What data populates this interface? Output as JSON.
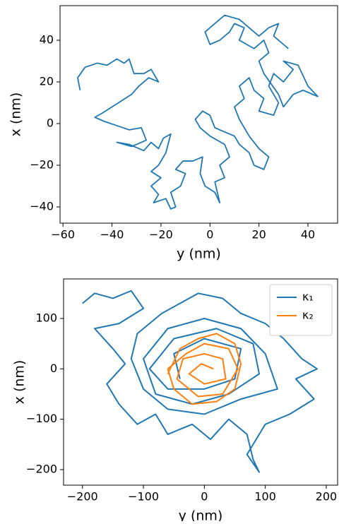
{
  "chart_data": [
    {
      "type": "line",
      "xlabel": "y (nm)",
      "ylabel": "x (nm)",
      "xlim": [
        -61.2,
        52.1
      ],
      "ylim": [
        -47.8,
        56.6
      ],
      "xticks": [
        {
          "value": -60,
          "label": "−60"
        },
        {
          "value": -40,
          "label": "−40"
        },
        {
          "value": -20,
          "label": "−20"
        },
        0,
        20,
        40
      ],
      "yticks": [
        {
          "value": -40,
          "label": "−40"
        },
        {
          "value": -20,
          "label": "−20"
        },
        0,
        20,
        40
      ],
      "series": [
        {
          "color": "#1f77b4",
          "x": [
            -53,
            -54,
            -51,
            -46,
            -42,
            -38,
            -35,
            -33,
            -31,
            -27,
            -24,
            -21,
            -25,
            -29,
            -32,
            -36,
            -40,
            -44,
            -47,
            -43,
            -38,
            -33,
            -28,
            -26,
            -32,
            -38,
            -33,
            -27,
            -24,
            -21,
            -19,
            -16,
            -18,
            -21,
            -24,
            -20,
            -24,
            -21,
            -23,
            -18,
            -16,
            -14,
            -16,
            -12,
            -10,
            -14,
            -11,
            -7,
            -3,
            -4,
            -2,
            2,
            4,
            2,
            6,
            4,
            8,
            6,
            0,
            -4,
            -6,
            -3,
            0,
            2,
            6,
            10,
            12,
            16,
            18,
            22,
            24,
            20,
            16,
            12,
            10,
            14,
            12,
            16,
            18,
            22,
            20,
            26,
            28,
            24,
            26,
            30,
            34,
            30,
            36,
            40,
            44,
            38,
            34,
            30,
            28,
            22,
            20,
            24,
            22,
            18,
            12,
            14,
            10,
            8,
            4,
            0,
            -2,
            2,
            6,
            12,
            16,
            20,
            24,
            28,
            26,
            30,
            32
          ],
          "values": [
            16,
            22,
            27,
            29,
            28,
            31,
            29,
            31,
            24,
            24,
            26,
            20,
            22,
            18,
            14,
            11,
            8,
            5,
            3,
            1,
            -1,
            -3,
            -2,
            -8,
            -11,
            -9,
            -10,
            -13,
            -9,
            -12,
            -7,
            -5,
            -14,
            -20,
            -23,
            -26,
            -30,
            -34,
            -38,
            -36,
            -41,
            -40,
            -33,
            -30,
            -24,
            -22,
            -18,
            -18,
            -16,
            -24,
            -30,
            -33,
            -38,
            -28,
            -26,
            -20,
            -16,
            -10,
            -6,
            -2,
            2,
            6,
            4,
            -2,
            -4,
            -6,
            -10,
            -14,
            -20,
            -22,
            -16,
            -12,
            -6,
            2,
            8,
            12,
            18,
            22,
            16,
            12,
            6,
            4,
            10,
            18,
            24,
            20,
            26,
            30,
            28,
            18,
            13,
            16,
            14,
            8,
            14,
            24,
            30,
            34,
            40,
            36,
            40,
            46,
            48,
            44,
            40,
            38,
            44,
            48,
            52,
            50,
            46,
            42,
            46,
            48,
            42,
            38,
            36
          ]
        }
      ]
    },
    {
      "type": "line",
      "xlabel": "y (nm)",
      "ylabel": "x (nm)",
      "xlim": [
        -231,
        218.6
      ],
      "ylim": [
        -230.9,
        178.5
      ],
      "xticks": [
        {
          "value": -200,
          "label": "−200"
        },
        {
          "value": -100,
          "label": "−100"
        },
        0,
        100,
        200
      ],
      "yticks": [
        {
          "value": -200,
          "label": "−200"
        },
        {
          "value": -100,
          "label": "−100"
        },
        0,
        100
      ],
      "series": [
        {
          "name": "κ₁",
          "color": "#1f77b4",
          "x": [
            -200,
            -180,
            -150,
            -120,
            -100,
            -140,
            -180,
            -150,
            -130,
            -160,
            -140,
            -110,
            -80,
            -60,
            -20,
            10,
            40,
            70,
            80,
            90,
            70,
            100,
            140,
            180,
            150,
            185,
            160,
            130,
            100,
            60,
            30,
            -10,
            -40,
            -70,
            -110,
            -120,
            -100,
            -60,
            0,
            60,
            120,
            100,
            60,
            0,
            -60,
            -100,
            -80,
            -20,
            40,
            90,
            80,
            20,
            -50,
            -90,
            -60,
            0,
            50,
            60,
            0,
            -50,
            -40
          ],
          "values": [
            130,
            150,
            140,
            155,
            120,
            90,
            80,
            40,
            10,
            -30,
            -70,
            -110,
            -90,
            -130,
            -110,
            -140,
            -100,
            -130,
            -180,
            -205,
            -170,
            -110,
            -90,
            -60,
            -20,
            0,
            20,
            60,
            90,
            110,
            140,
            150,
            130,
            110,
            70,
            20,
            -40,
            -80,
            -90,
            -60,
            -40,
            30,
            80,
            100,
            80,
            20,
            -50,
            -70,
            -50,
            -10,
            50,
            80,
            60,
            0,
            -40,
            -40,
            -20,
            40,
            60,
            30,
            -20
          ]
        },
        {
          "name": "κ₂",
          "color": "#ff7f0e",
          "x": [
            -60,
            -40,
            -10,
            20,
            50,
            60,
            50,
            20,
            -20,
            -50,
            -60,
            -30,
            0,
            40,
            55,
            30,
            -10,
            -45,
            -35,
            0,
            30,
            35,
            0,
            -25,
            -5,
            15
          ],
          "values": [
            -10,
            40,
            60,
            70,
            50,
            10,
            -40,
            -65,
            -70,
            -40,
            0,
            30,
            50,
            40,
            0,
            -50,
            -55,
            -20,
            20,
            30,
            20,
            -20,
            -30,
            -10,
            10,
            0
          ]
        }
      ],
      "legend": "upper right"
    }
  ]
}
